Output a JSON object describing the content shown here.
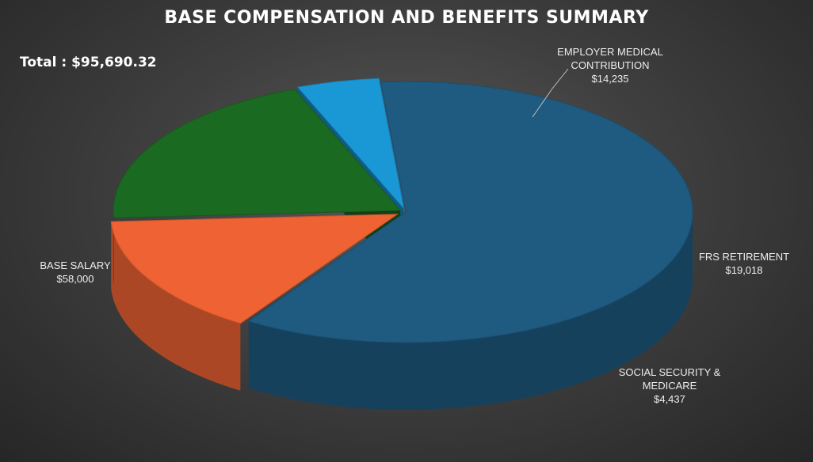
{
  "title": "BASE COMPENSATION AND BENEFITS SUMMARY",
  "total": "Total : $95,690.32",
  "chart_data": {
    "type": "pie",
    "title": "BASE COMPENSATION AND BENEFITS SUMMARY",
    "style": "3d-exploded",
    "legend": "none",
    "slices": [
      {
        "name": "BASE SALARY",
        "value": 58000,
        "label_value": "$58,000",
        "color": "#1f5a80"
      },
      {
        "name": "EMPLOYER MEDICAL CONTRIBUTION",
        "value": 14235,
        "label_value": "$14,235",
        "color": "#ee6233"
      },
      {
        "name": "FRS RETIREMENT",
        "value": 19018,
        "label_value": "$19,018",
        "color": "#1b6a21"
      },
      {
        "name": "SOCIAL SECURITY & MEDICARE",
        "value": 4437,
        "label_value": "$4,437",
        "color": "#1a98d6"
      }
    ],
    "labels": [
      {
        "lines": [
          "BASE SALARY",
          "$58,000"
        ]
      },
      {
        "lines": [
          "EMPLOYER MEDICAL",
          "CONTRIBUTION",
          "$14,235"
        ]
      },
      {
        "lines": [
          "FRS RETIREMENT",
          "$19,018"
        ]
      },
      {
        "lines": [
          "SOCIAL SECURITY &",
          "MEDICARE",
          "$4,437"
        ]
      }
    ]
  }
}
